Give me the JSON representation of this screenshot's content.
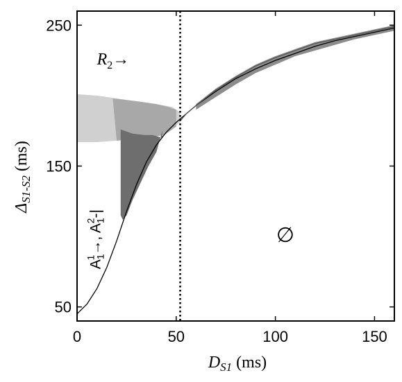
{
  "chart_data": {
    "type": "area",
    "title": "",
    "xlabel": {
      "main": "D",
      "sub": "S1",
      "unit": " (ms)"
    },
    "ylabel": {
      "main": "Δ",
      "sub": "S1-S2",
      "unit": " (ms)"
    },
    "xlim": [
      0,
      160
    ],
    "ylim": [
      40,
      260
    ],
    "xticks": [
      0,
      50,
      100,
      150
    ],
    "yticks": [
      50,
      150,
      250
    ],
    "xtick_labels": [
      "0",
      "50",
      "100",
      "150"
    ],
    "ytick_labels": [
      "50",
      "150",
      "250"
    ],
    "grid": false,
    "vline": {
      "x": 52,
      "style": "dotted"
    },
    "curves": [
      {
        "name": "lower boundary",
        "color": "#000000",
        "points": [
          [
            0,
            45
          ],
          [
            5,
            52
          ],
          [
            10,
            63
          ],
          [
            15,
            78
          ],
          [
            20,
            97
          ],
          [
            25,
            118
          ],
          [
            30,
            137
          ],
          [
            35,
            153
          ],
          [
            40,
            165
          ],
          [
            45,
            174
          ],
          [
            50,
            181
          ],
          [
            55,
            187
          ],
          [
            60,
            193
          ],
          [
            70,
            203
          ],
          [
            80,
            212
          ],
          [
            90,
            219
          ],
          [
            100,
            225
          ],
          [
            110,
            230
          ],
          [
            120,
            235
          ],
          [
            130,
            239
          ],
          [
            140,
            242
          ],
          [
            150,
            245
          ],
          [
            160,
            248
          ]
        ]
      },
      {
        "name": "upper boundary",
        "color": "#555555",
        "points": [
          [
            52,
            182
          ],
          [
            55,
            187
          ],
          [
            60,
            193
          ],
          [
            70,
            204
          ],
          [
            80,
            213
          ],
          [
            90,
            221
          ],
          [
            100,
            227
          ],
          [
            110,
            232
          ],
          [
            120,
            237
          ],
          [
            130,
            240
          ],
          [
            140,
            243
          ],
          [
            150,
            246
          ],
          [
            160,
            249
          ]
        ]
      }
    ],
    "regions": [
      {
        "name": "light band",
        "color": "#d0d0d0",
        "points": [
          [
            0,
            201
          ],
          [
            10,
            200
          ],
          [
            20,
            198
          ],
          [
            30,
            196
          ],
          [
            40,
            194
          ],
          [
            48,
            192
          ],
          [
            52,
            188
          ],
          [
            52,
            181
          ],
          [
            46,
            175
          ],
          [
            40,
            172
          ],
          [
            30,
            170
          ],
          [
            20,
            168
          ],
          [
            10,
            167
          ],
          [
            0,
            167
          ]
        ]
      },
      {
        "name": "mid band",
        "color": "#a8a8a8",
        "points": [
          [
            18,
            198
          ],
          [
            30,
            196
          ],
          [
            40,
            194
          ],
          [
            46,
            192
          ],
          [
            50,
            190
          ],
          [
            50,
            178
          ],
          [
            44,
            172
          ],
          [
            36,
            170
          ],
          [
            28,
            169
          ],
          [
            20,
            168
          ]
        ]
      },
      {
        "name": "dark wedge",
        "color": "#6e6e6e",
        "points": [
          [
            22,
            176
          ],
          [
            28,
            173
          ],
          [
            34,
            172
          ],
          [
            38,
            172
          ],
          [
            43,
            170
          ],
          [
            43,
            175
          ],
          [
            40,
            160
          ],
          [
            36,
            150
          ],
          [
            32,
            138
          ],
          [
            28,
            126
          ],
          [
            25,
            115
          ],
          [
            23,
            112
          ],
          [
            22,
            115
          ]
        ]
      },
      {
        "name": "upper sliver",
        "color": "#8c8c8c",
        "points": [
          [
            60,
            194
          ],
          [
            70,
            205
          ],
          [
            80,
            214
          ],
          [
            90,
            222
          ],
          [
            100,
            228
          ],
          [
            110,
            233
          ],
          [
            120,
            238
          ],
          [
            130,
            241
          ],
          [
            140,
            244
          ],
          [
            150,
            247
          ],
          [
            160,
            250
          ],
          [
            160,
            246
          ],
          [
            150,
            243
          ],
          [
            140,
            240
          ],
          [
            130,
            236
          ],
          [
            120,
            232
          ],
          [
            110,
            228
          ],
          [
            100,
            222
          ],
          [
            90,
            216
          ],
          [
            80,
            208
          ],
          [
            70,
            199
          ],
          [
            60,
            190
          ]
        ]
      }
    ],
    "annotations": [
      {
        "id": "r2",
        "base": "R",
        "sub": "2",
        "arrow": "→",
        "x": 10,
        "y": 222
      },
      {
        "id": "a1a2",
        "text_parts": [
          "A",
          "1",
          "1",
          "→, A",
          "1",
          "2",
          "-|"
        ],
        "x": 9,
        "y": 98,
        "rotation": -90
      },
      {
        "id": "empty",
        "text": "∅",
        "x": 105,
        "y": 101
      }
    ]
  }
}
